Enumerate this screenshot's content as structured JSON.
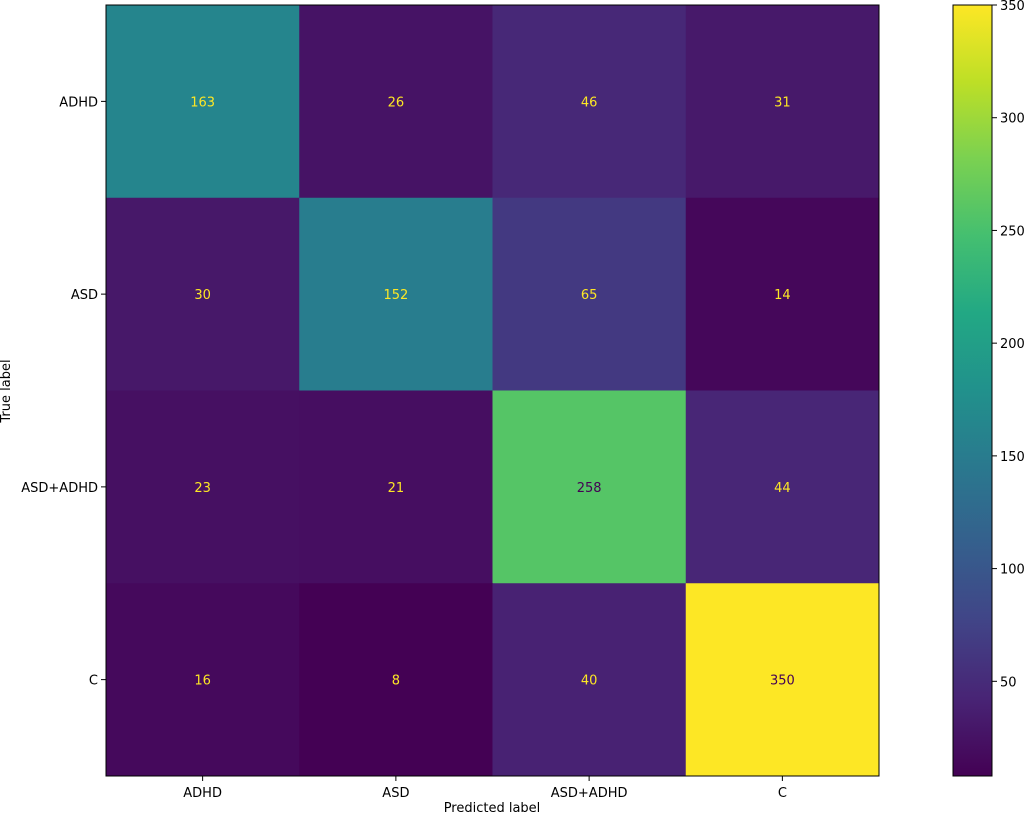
{
  "chart_data": {
    "type": "heatmap",
    "title": "",
    "xlabel": "Predicted label",
    "ylabel": "True label",
    "x_categories": [
      "ADHD",
      "ASD",
      "ASD+ADHD",
      "C"
    ],
    "y_categories": [
      "ADHD",
      "ASD",
      "ASD+ADHD",
      "C"
    ],
    "values": [
      [
        163,
        26,
        46,
        31
      ],
      [
        30,
        152,
        65,
        14
      ],
      [
        23,
        21,
        258,
        44
      ],
      [
        16,
        8,
        40,
        350
      ]
    ],
    "colormap": "viridis",
    "vmin": 8,
    "vmax": 350,
    "colorbar_ticks": [
      "50",
      "100",
      "150",
      "200",
      "250",
      "300",
      "350"
    ],
    "text_color_dark_cells": "#fde725",
    "text_color_light_cells": "#440154"
  }
}
